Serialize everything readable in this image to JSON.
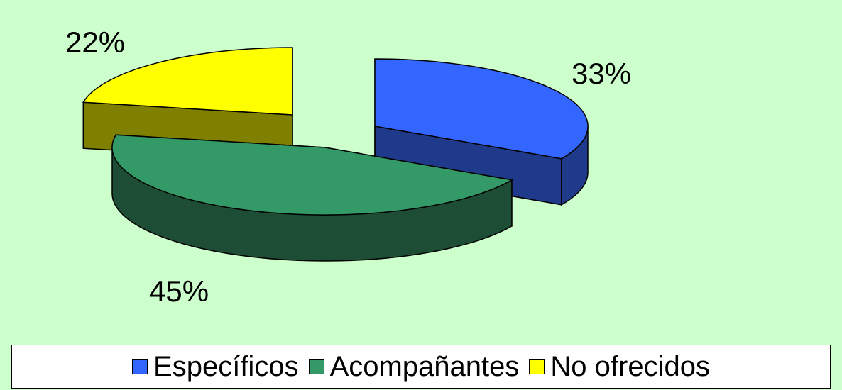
{
  "chart_data": {
    "type": "pie",
    "style": "3d-exploded",
    "title": "",
    "slices": [
      {
        "label": "Específicos",
        "value": 33,
        "display": "33%",
        "color": "#3366ff",
        "side_color": "#1f3a8a"
      },
      {
        "label": "Acompañantes",
        "value": 45,
        "display": "45%",
        "color": "#339966",
        "side_color": "#1e4d35"
      },
      {
        "label": "No ofrecidos",
        "value": 22,
        "display": "22%",
        "color": "#ffff00",
        "side_color": "#808000"
      }
    ],
    "legend_position": "bottom"
  },
  "background_color": "#ccffcc"
}
